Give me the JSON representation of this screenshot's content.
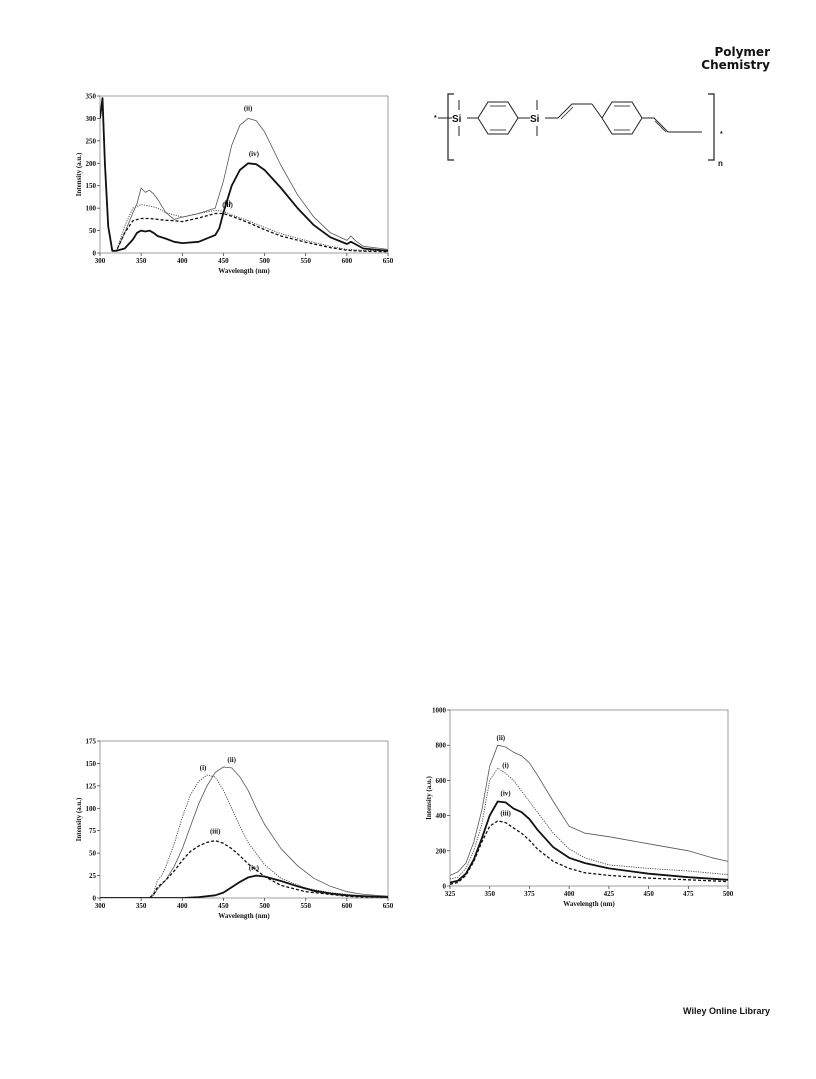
{
  "header": {
    "journal_line1": "Polymer",
    "journal_line2": "Chemistry"
  },
  "footer": {
    "text": "Wiley Online Library"
  },
  "structure": {
    "atom1": "Si",
    "atom2": "Si",
    "star_left": "*",
    "star_right": "*",
    "repeat": "n"
  },
  "chart_data": [
    {
      "type": "line",
      "xlabel": "Wavelength (nm)",
      "ylabel": "Intensity (a.u.)",
      "xlim": [
        300,
        650
      ],
      "ylim": [
        0,
        350
      ],
      "xticks": [
        300,
        350,
        400,
        450,
        500,
        550,
        600,
        650
      ],
      "yticks": [
        0,
        50,
        100,
        150,
        200,
        250,
        300,
        350
      ],
      "grid": false,
      "series": [
        {
          "name": "(i)",
          "style": "dotted",
          "color": "#444444",
          "x": [
            300,
            303,
            306,
            310,
            315,
            320,
            330,
            340,
            350,
            360,
            370,
            380,
            390,
            400,
            420,
            440,
            450,
            460,
            480,
            500,
            520,
            550,
            580,
            600,
            620,
            650
          ],
          "y": [
            300,
            345,
            200,
            60,
            5,
            5,
            60,
            100,
            108,
            105,
            100,
            90,
            85,
            80,
            88,
            95,
            93,
            85,
            72,
            57,
            43,
            28,
            15,
            8,
            6,
            5
          ]
        },
        {
          "name": "(ii)",
          "style": "solid-thin",
          "color": "#555555",
          "x": [
            300,
            303,
            306,
            310,
            315,
            320,
            330,
            340,
            345,
            350,
            355,
            360,
            365,
            370,
            380,
            390,
            400,
            420,
            440,
            450,
            460,
            470,
            480,
            490,
            500,
            520,
            540,
            560,
            580,
            600,
            605,
            610,
            620,
            650
          ],
          "y": [
            300,
            345,
            200,
            60,
            5,
            5,
            45,
            90,
            110,
            145,
            135,
            140,
            132,
            120,
            90,
            75,
            80,
            88,
            100,
            160,
            240,
            285,
            300,
            295,
            270,
            195,
            130,
            80,
            45,
            28,
            38,
            28,
            15,
            8
          ]
        },
        {
          "name": "(iii)",
          "style": "dashed",
          "color": "#111111",
          "x": [
            300,
            303,
            306,
            310,
            315,
            320,
            330,
            340,
            350,
            360,
            370,
            380,
            390,
            400,
            420,
            440,
            450,
            460,
            480,
            500,
            520,
            550,
            580,
            600,
            620,
            650
          ],
          "y": [
            300,
            345,
            200,
            60,
            5,
            5,
            45,
            72,
            77,
            77,
            75,
            73,
            72,
            70,
            78,
            88,
            88,
            82,
            68,
            52,
            38,
            24,
            12,
            6,
            4,
            3
          ]
        },
        {
          "name": "(iv)",
          "style": "solid-thick",
          "color": "#111111",
          "x": [
            300,
            303,
            306,
            310,
            315,
            320,
            330,
            340,
            345,
            350,
            355,
            360,
            365,
            370,
            380,
            390,
            400,
            420,
            440,
            445,
            450,
            460,
            470,
            480,
            490,
            500,
            520,
            540,
            560,
            580,
            600,
            605,
            610,
            620,
            650
          ],
          "y": [
            300,
            345,
            200,
            60,
            5,
            5,
            10,
            30,
            45,
            50,
            48,
            50,
            45,
            38,
            32,
            25,
            22,
            25,
            40,
            55,
            90,
            150,
            185,
            200,
            198,
            185,
            145,
            100,
            62,
            35,
            20,
            25,
            20,
            10,
            5
          ]
        }
      ],
      "annotations": [
        "(ii)",
        "(iv)",
        "(i)",
        "(iii)"
      ]
    },
    {
      "type": "line",
      "xlabel": "Wavelength (nm)",
      "ylabel": "Intensity (a.u.)",
      "xlim": [
        300,
        650
      ],
      "ylim": [
        0,
        175
      ],
      "xticks": [
        300,
        350,
        400,
        450,
        500,
        550,
        600,
        650
      ],
      "yticks": [
        0,
        25,
        50,
        75,
        100,
        125,
        150,
        175
      ],
      "grid": false,
      "series": [
        {
          "name": "(i)",
          "style": "dotted",
          "color": "#444444",
          "x": [
            300,
            360,
            365,
            370,
            375,
            380,
            390,
            400,
            410,
            420,
            430,
            440,
            450,
            460,
            470,
            480,
            500,
            520,
            550,
            580,
            600,
            620,
            650
          ],
          "y": [
            0,
            0,
            5,
            20,
            25,
            35,
            60,
            90,
            115,
            130,
            137,
            135,
            120,
            100,
            80,
            62,
            37,
            22,
            11,
            6,
            4,
            2,
            1
          ]
        },
        {
          "name": "(ii)",
          "style": "solid-thin",
          "color": "#555555",
          "x": [
            300,
            360,
            365,
            370,
            375,
            380,
            390,
            400,
            410,
            420,
            430,
            440,
            450,
            460,
            470,
            480,
            490,
            500,
            520,
            540,
            560,
            580,
            600,
            620,
            650
          ],
          "y": [
            0,
            0,
            3,
            10,
            15,
            20,
            35,
            55,
            80,
            105,
            125,
            140,
            146,
            145,
            135,
            120,
            100,
            82,
            55,
            36,
            22,
            13,
            7,
            4,
            2
          ]
        },
        {
          "name": "(iii)",
          "style": "dashed",
          "color": "#111111",
          "x": [
            300,
            360,
            365,
            370,
            375,
            380,
            390,
            400,
            410,
            420,
            430,
            440,
            450,
            460,
            470,
            480,
            500,
            520,
            550,
            580,
            600,
            620,
            650
          ],
          "y": [
            0,
            0,
            4,
            12,
            16,
            20,
            30,
            42,
            52,
            58,
            62,
            64,
            61,
            55,
            47,
            38,
            24,
            14,
            7,
            4,
            2,
            1,
            1
          ]
        },
        {
          "name": "(iv)",
          "style": "solid-thick",
          "color": "#111111",
          "x": [
            300,
            380,
            400,
            420,
            440,
            450,
            460,
            470,
            480,
            490,
            500,
            520,
            540,
            560,
            580,
            600,
            620,
            650
          ],
          "y": [
            0,
            0,
            0,
            1,
            3,
            6,
            12,
            18,
            23,
            25,
            24,
            19,
            13,
            8,
            5,
            3,
            2,
            1
          ]
        }
      ],
      "annotations": [
        "(i)",
        "(ii)",
        "(iii)",
        "(iv)"
      ]
    },
    {
      "type": "line",
      "xlabel": "Wavelength (nm)",
      "ylabel": "Intensity (a.u.)",
      "xlim": [
        325,
        500
      ],
      "ylim": [
        0,
        1000
      ],
      "xticks": [
        325,
        350,
        375,
        400,
        425,
        450,
        475,
        500
      ],
      "yticks": [
        0,
        200,
        400,
        600,
        800,
        1000
      ],
      "grid": false,
      "series": [
        {
          "name": "(i)",
          "style": "dotted",
          "color": "#444444",
          "x": [
            325,
            330,
            335,
            340,
            345,
            350,
            355,
            360,
            365,
            370,
            375,
            380,
            390,
            400,
            410,
            425,
            450,
            475,
            500
          ],
          "y": [
            40,
            50,
            100,
            200,
            350,
            600,
            670,
            640,
            600,
            540,
            480,
            420,
            300,
            210,
            160,
            120,
            100,
            85,
            65
          ]
        },
        {
          "name": "(ii)",
          "style": "solid-thin",
          "color": "#555555",
          "x": [
            325,
            330,
            335,
            340,
            345,
            350,
            355,
            360,
            365,
            370,
            375,
            380,
            390,
            400,
            410,
            425,
            450,
            475,
            490,
            500
          ],
          "y": [
            60,
            80,
            130,
            250,
            430,
            680,
            800,
            790,
            760,
            740,
            700,
            630,
            480,
            340,
            300,
            280,
            240,
            200,
            160,
            140
          ]
        },
        {
          "name": "(iii)",
          "style": "dashed",
          "color": "#111111",
          "x": [
            325,
            330,
            335,
            340,
            345,
            350,
            355,
            360,
            365,
            370,
            375,
            380,
            390,
            400,
            410,
            425,
            450,
            475,
            500
          ],
          "y": [
            10,
            20,
            60,
            140,
            250,
            340,
            370,
            360,
            330,
            300,
            260,
            210,
            140,
            100,
            75,
            60,
            45,
            35,
            25
          ]
        },
        {
          "name": "(iv)",
          "style": "solid-thick",
          "color": "#111111",
          "x": [
            325,
            330,
            335,
            340,
            345,
            350,
            355,
            360,
            365,
            370,
            375,
            380,
            390,
            400,
            410,
            425,
            450,
            475,
            500
          ],
          "y": [
            20,
            30,
            70,
            150,
            270,
            400,
            480,
            475,
            440,
            420,
            380,
            320,
            220,
            160,
            130,
            100,
            70,
            50,
            35
          ]
        }
      ],
      "annotations": [
        "(ii)",
        "(i)",
        "(iv)",
        "(iii)"
      ]
    }
  ]
}
